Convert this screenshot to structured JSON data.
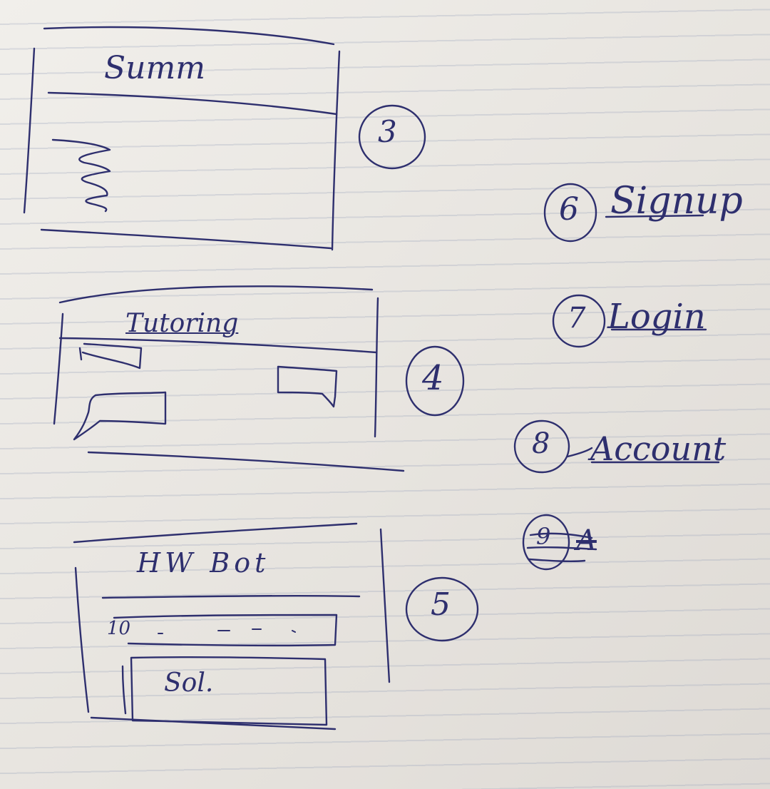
{
  "sketch": {
    "screens": [
      {
        "number": "3",
        "title": "Summ"
      },
      {
        "number": "4",
        "title": "Tutoring"
      },
      {
        "number": "5",
        "title": "HW Bot",
        "field_label": "10",
        "solution_label": "Sol."
      }
    ],
    "menu": [
      {
        "number": "6",
        "label": "Signup"
      },
      {
        "number": "7",
        "label": "Login"
      },
      {
        "number": "8",
        "label": "Account"
      },
      {
        "number": "9",
        "label": "A"
      }
    ],
    "ink_color": "#2e2f6e",
    "paper_color": "#ece9e4"
  }
}
